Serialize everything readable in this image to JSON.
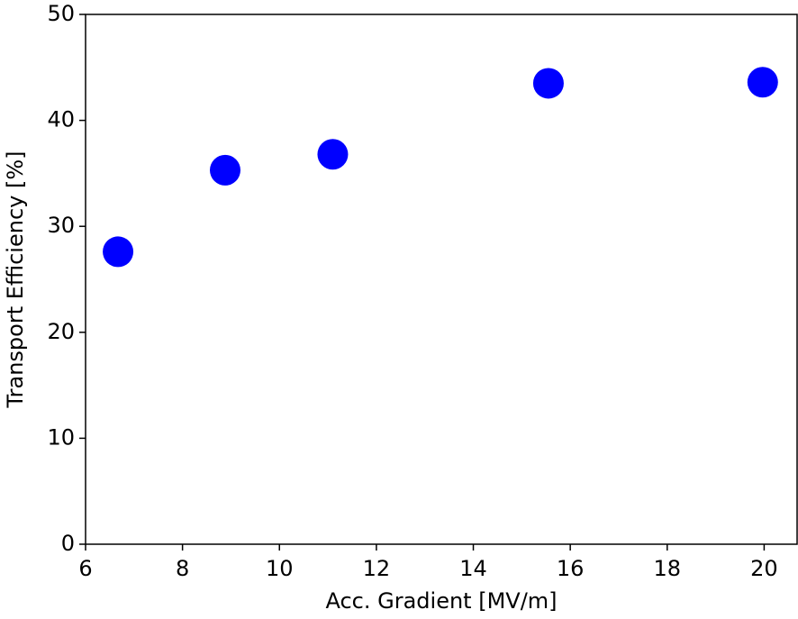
{
  "chart_data": {
    "type": "scatter",
    "x_label": "Acc. Gradient [MV/m]",
    "y_label": "Transport Efficiency [%]",
    "series": [
      {
        "color": "#0000ff",
        "x": [
          6.67,
          8.88,
          11.1,
          15.55,
          19.97
        ],
        "values": [
          27.6,
          35.3,
          36.8,
          43.5,
          43.6
        ]
      }
    ],
    "xlim": [
      6,
      20.68
    ],
    "xticks": [
      6,
      8,
      10,
      12,
      14,
      16,
      18,
      20
    ],
    "ylim": [
      0,
      50
    ],
    "yticks": [
      0,
      10,
      20,
      30,
      40,
      50
    ]
  }
}
